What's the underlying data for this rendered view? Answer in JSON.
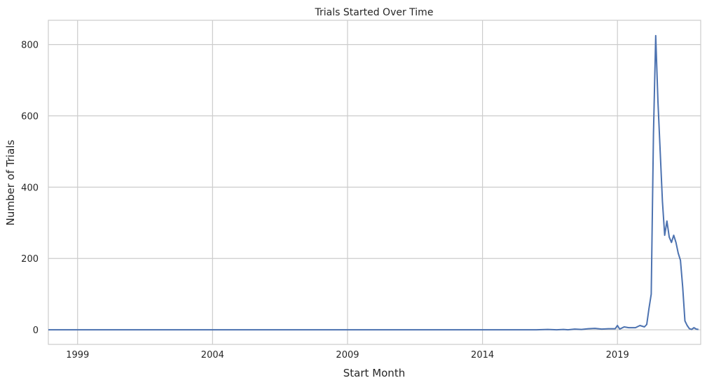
{
  "chart_data": {
    "type": "line",
    "title": "Trials Started Over Time",
    "xlabel": "Start Month",
    "ylabel": "Number of Trials",
    "x_ticks": [
      "1999",
      "2004",
      "2009",
      "2014",
      "2019"
    ],
    "y_ticks": [
      0,
      200,
      400,
      600,
      800
    ],
    "xlim": [
      "1997-12",
      "2022-02"
    ],
    "ylim": [
      -41,
      868
    ],
    "grid": true,
    "line_color": "#4c72b0",
    "series": [
      {
        "points": [
          [
            "1997-12",
            0
          ],
          [
            "2016-01",
            0
          ],
          [
            "2016-06",
            1
          ],
          [
            "2016-10",
            0
          ],
          [
            "2017-01",
            1
          ],
          [
            "2017-03",
            0
          ],
          [
            "2017-06",
            2
          ],
          [
            "2017-09",
            1
          ],
          [
            "2017-12",
            3
          ],
          [
            "2018-03",
            4
          ],
          [
            "2018-06",
            2
          ],
          [
            "2018-09",
            3
          ],
          [
            "2018-12",
            3
          ],
          [
            "2019-01",
            12
          ],
          [
            "2019-02",
            2
          ],
          [
            "2019-04",
            8
          ],
          [
            "2019-06",
            6
          ],
          [
            "2019-09",
            6
          ],
          [
            "2019-11",
            12
          ],
          [
            "2020-01",
            8
          ],
          [
            "2020-02",
            15
          ],
          [
            "2020-03",
            60
          ],
          [
            "2020-04",
            100
          ],
          [
            "2020-05",
            550
          ],
          [
            "2020-06",
            825
          ],
          [
            "2020-07",
            640
          ],
          [
            "2020-08",
            500
          ],
          [
            "2020-09",
            360
          ],
          [
            "2020-10",
            265
          ],
          [
            "2020-11",
            305
          ],
          [
            "2020-12",
            260
          ],
          [
            "2021-01",
            245
          ],
          [
            "2021-02",
            265
          ],
          [
            "2021-03",
            245
          ],
          [
            "2021-04",
            215
          ],
          [
            "2021-05",
            195
          ],
          [
            "2021-06",
            120
          ],
          [
            "2021-07",
            25
          ],
          [
            "2021-08",
            12
          ],
          [
            "2021-09",
            3
          ],
          [
            "2021-10",
            1
          ],
          [
            "2021-11",
            6
          ],
          [
            "2021-12",
            2
          ],
          [
            "2022-01",
            1
          ]
        ]
      }
    ]
  }
}
